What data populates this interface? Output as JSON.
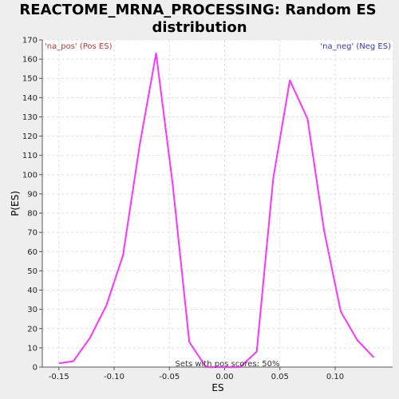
{
  "chart_data": {
    "type": "line",
    "title_lines": [
      "REACTOME_MRNA_PROCESSING: Random ES",
      "distribution"
    ],
    "xlabel": "ES",
    "ylabel": "P(ES)",
    "xlim": [
      -0.165,
      0.152
    ],
    "ylim": [
      0,
      170
    ],
    "xticks": [
      -0.15,
      -0.1,
      -0.05,
      0.0,
      0.05,
      0.1
    ],
    "xtick_labels": [
      "-0.15",
      "-0.10",
      "-0.05",
      "0.00",
      "0.05",
      "0.10"
    ],
    "yticks": [
      0,
      10,
      20,
      30,
      40,
      50,
      60,
      70,
      80,
      90,
      100,
      110,
      120,
      130,
      140,
      150,
      160,
      170
    ],
    "grid": true,
    "legend": {
      "pos_label": "'na_pos' (Pos ES)",
      "neg_label": "'na_neg' (Neg ES)",
      "pos_color": "#cc3333",
      "neg_color": "#3333cc"
    },
    "annotation": "Sets with pos scores: 50%",
    "series": [
      {
        "color": "#ff33ff",
        "x": [
          -0.15,
          -0.137,
          -0.122,
          -0.107,
          -0.092,
          -0.077,
          -0.062,
          -0.047,
          -0.032,
          -0.017,
          0.0,
          0.014,
          0.029,
          0.044,
          0.059,
          0.075,
          0.09,
          0.105,
          0.12,
          0.135
        ],
        "y": [
          2,
          3,
          15,
          32,
          58,
          115,
          163,
          95,
          13,
          0,
          0,
          0,
          8,
          98,
          149,
          129,
          71,
          29,
          14,
          5
        ]
      }
    ]
  }
}
